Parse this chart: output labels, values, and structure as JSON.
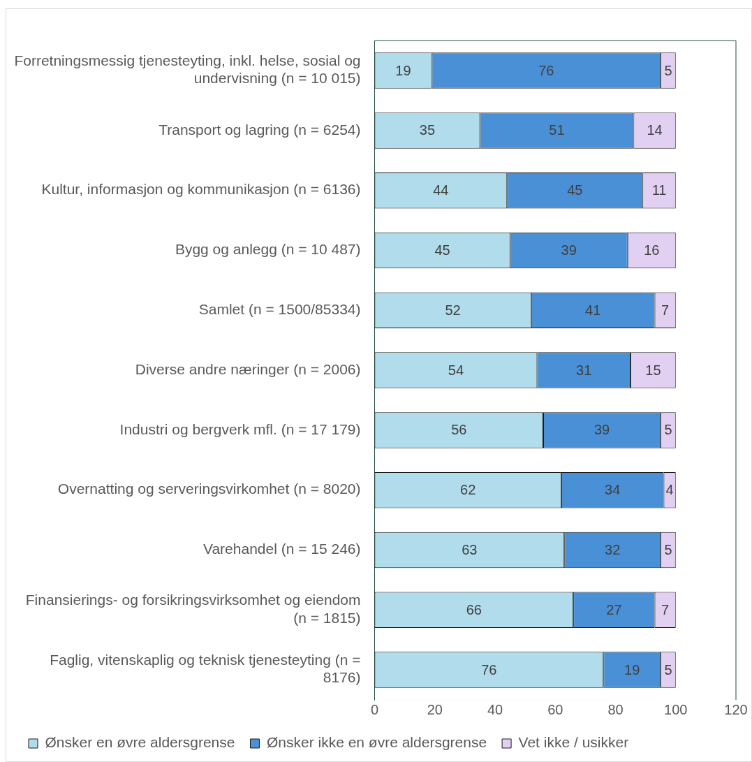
{
  "chart_data": {
    "type": "bar",
    "orientation": "horizontal",
    "stacked": true,
    "categories": [
      "Forretningsmessig tjenesteyting, inkl. helse, sosial og undervisning (n = 10 015)",
      "Transport og lagring (n = 6254)",
      "Kultur, informasjon og kommunikasjon (n = 6136)",
      "Bygg og anlegg (n = 10 487)",
      "Samlet (n = 1500/85334)",
      "Diverse andre næringer (n = 2006)",
      "Industri og bergverk mfl. (n = 17 179)",
      "Overnatting og serveringsvirkomhet (n = 8020)",
      "Varehandel (n = 15 246)",
      "Finansierings- og forsikringsvirksomhet og eiendom (n = 1815)",
      "Faglig, vitenskaplig og teknisk tjenesteyting (n = 8176)"
    ],
    "series": [
      {
        "name": "Ønsker en øvre aldersgrense",
        "color": "#b0dcec",
        "values": [
          19,
          35,
          44,
          45,
          52,
          54,
          56,
          62,
          63,
          66,
          76
        ]
      },
      {
        "name": "Ønsker ikke en øvre aldersgrense",
        "color": "#4a90d6",
        "values": [
          76,
          51,
          45,
          39,
          41,
          31,
          39,
          34,
          32,
          27,
          19
        ]
      },
      {
        "name": "Vet ikke / usikker",
        "color": "#e2d0f2",
        "values": [
          5,
          14,
          11,
          16,
          7,
          15,
          5,
          4,
          5,
          7,
          5
        ]
      }
    ],
    "xlim": [
      0,
      120
    ],
    "xticks": [
      0,
      20,
      40,
      60,
      80,
      100,
      120
    ],
    "grid": false,
    "legend": "bottom",
    "data_labels": true
  }
}
